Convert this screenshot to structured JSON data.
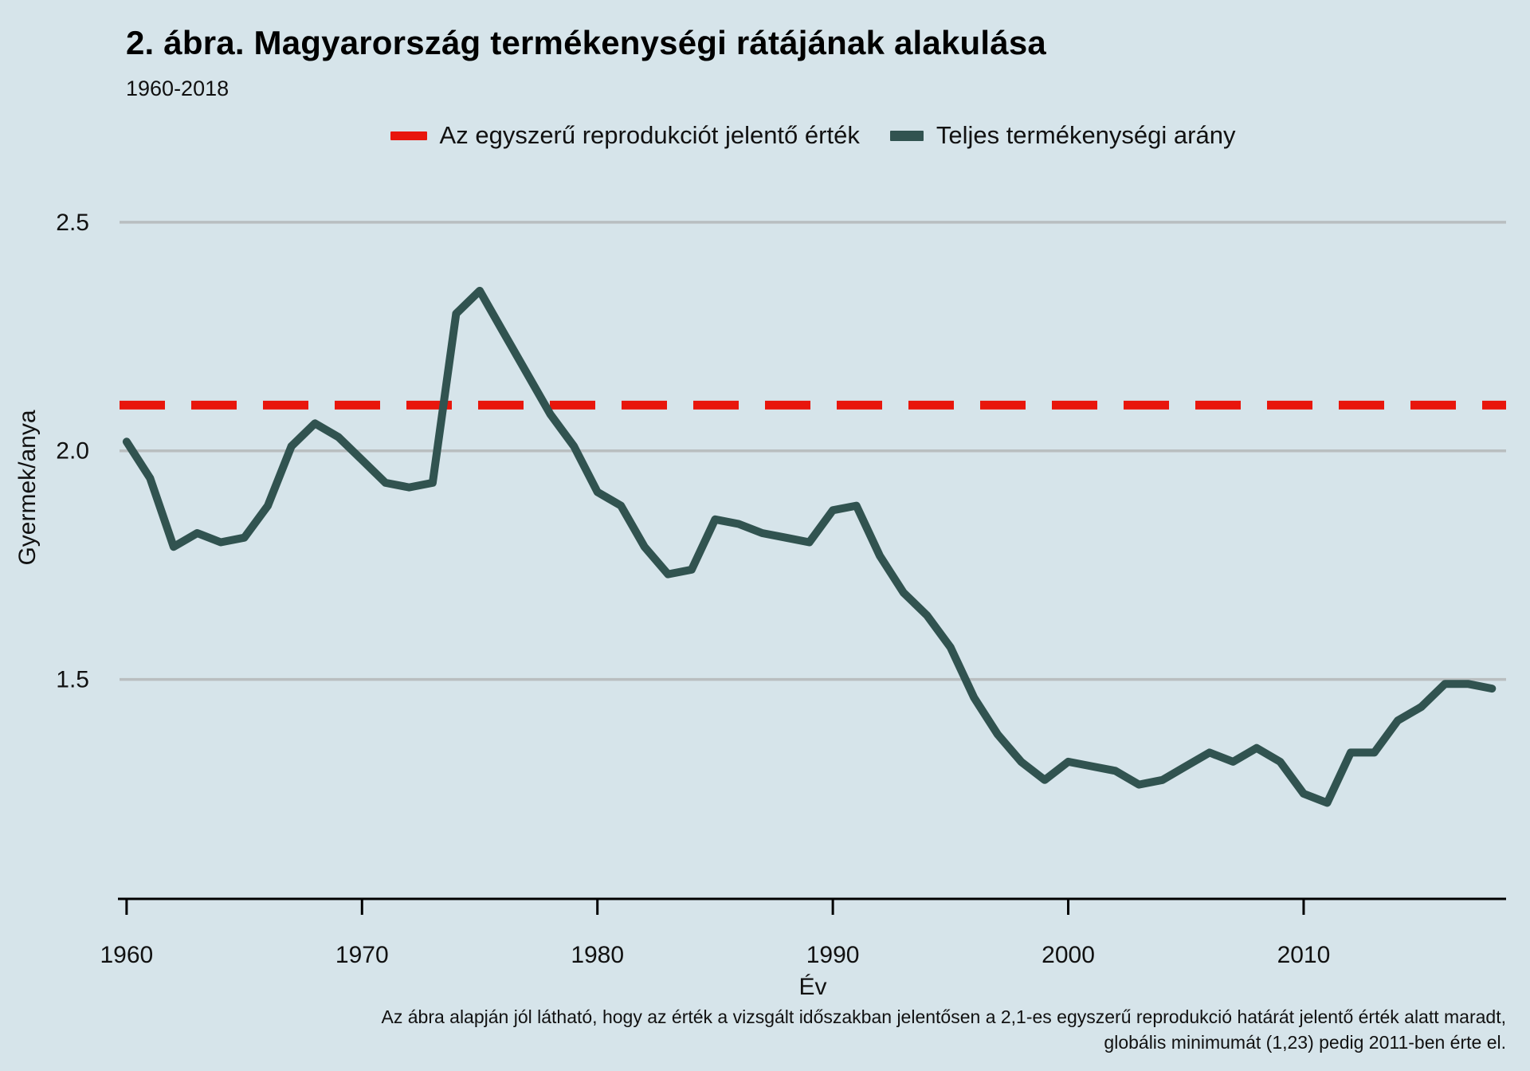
{
  "page": {
    "background": "#d6e4ea"
  },
  "caption": {
    "line1": "Az ábra alapján jól látható, hogy az érték a vizsgált időszakban jelentősen a 2,1-es egyszerű reprodukció határát jelentő érték alatt maradt,",
    "line2": "globális minimumát (1,23) pedig 2011-ben érte el."
  },
  "chart_data": {
    "type": "line",
    "title": "2. ábra. Magyarország termékenységi rátájának alakulása",
    "subtitle": "1960-2018",
    "xlabel": "Év",
    "ylabel": "Gyermek/anya",
    "x_ticks": [
      1960,
      1970,
      1980,
      1990,
      2000,
      2010
    ],
    "y_ticks": [
      {
        "value": 1.5,
        "label": "1.5"
      },
      {
        "value": 2.0,
        "label": "2.0"
      },
      {
        "value": 2.5,
        "label": "2.5"
      }
    ],
    "xlim": [
      1959.7,
      2018.6
    ],
    "ylim": [
      1.02,
      2.62
    ],
    "grid": true,
    "grid_color": "#b9bec0",
    "axis_color": "#000000",
    "legend_position": "top",
    "reference_line": {
      "name": "Az egyszerű reprodukciót jelentő érték",
      "value": 2.1,
      "color": "#e8160c",
      "style": "dashed"
    },
    "series": [
      {
        "name": "Teljes termékenységi arány",
        "color": "#315350",
        "style": "solid",
        "x": [
          1960,
          1961,
          1962,
          1963,
          1964,
          1965,
          1966,
          1967,
          1968,
          1969,
          1970,
          1971,
          1972,
          1973,
          1974,
          1975,
          1976,
          1977,
          1978,
          1979,
          1980,
          1981,
          1982,
          1983,
          1984,
          1985,
          1986,
          1987,
          1988,
          1989,
          1990,
          1991,
          1992,
          1993,
          1994,
          1995,
          1996,
          1997,
          1998,
          1999,
          2000,
          2001,
          2002,
          2003,
          2004,
          2005,
          2006,
          2007,
          2008,
          2009,
          2010,
          2011,
          2012,
          2013,
          2014,
          2015,
          2016,
          2017,
          2018
        ],
        "values": [
          2.02,
          1.94,
          1.79,
          1.82,
          1.8,
          1.81,
          1.88,
          2.01,
          2.06,
          2.03,
          1.98,
          1.93,
          1.92,
          1.93,
          2.3,
          2.35,
          2.26,
          2.17,
          2.08,
          2.01,
          1.91,
          1.88,
          1.79,
          1.73,
          1.74,
          1.85,
          1.84,
          1.82,
          1.81,
          1.8,
          1.87,
          1.88,
          1.77,
          1.69,
          1.64,
          1.57,
          1.46,
          1.38,
          1.32,
          1.28,
          1.32,
          1.31,
          1.3,
          1.27,
          1.28,
          1.31,
          1.34,
          1.32,
          1.35,
          1.32,
          1.25,
          1.23,
          1.34,
          1.34,
          1.41,
          1.44,
          1.49,
          1.49,
          1.48
        ]
      }
    ]
  }
}
